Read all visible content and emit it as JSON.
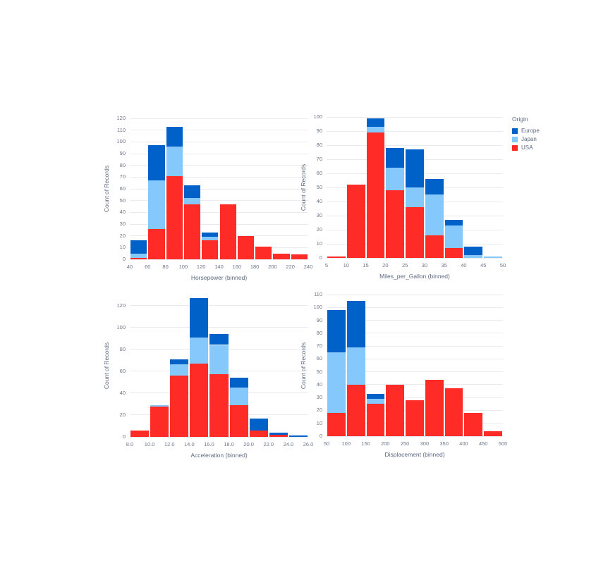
{
  "legend": {
    "title": "Origin",
    "entries": [
      {
        "label": "Europe",
        "color": "#0062c8"
      },
      {
        "label": "Japan",
        "color": "#85c8fb"
      },
      {
        "label": "USA",
        "color": "#ff2b26"
      }
    ]
  },
  "chart_data": [
    {
      "type": "bar",
      "id": "horsepower",
      "xlabel": "Horsepower (binned)",
      "ylabel": "Count of Records",
      "bin_start": 40,
      "bin_step": 20,
      "x_tick_labels": [
        "40",
        "60",
        "80",
        "100",
        "120",
        "140",
        "160",
        "180",
        "200",
        "220",
        "240"
      ],
      "ylim": [
        0,
        120
      ],
      "y_tick_values": [
        0,
        10,
        20,
        30,
        40,
        50,
        60,
        70,
        80,
        90,
        100,
        110,
        120
      ],
      "legend_position": "top-right",
      "grid": true,
      "series": [
        {
          "name": "USA",
          "color": "#ff2b26",
          "values": [
            1,
            26,
            71,
            47,
            16,
            47,
            20,
            11,
            5,
            4
          ]
        },
        {
          "name": "Japan",
          "color": "#85c8fb",
          "values": [
            4,
            41,
            25,
            5,
            3,
            0,
            0,
            0,
            0,
            0
          ]
        },
        {
          "name": "Europe",
          "color": "#0062c8",
          "values": [
            11,
            30,
            17,
            11,
            4,
            0,
            0,
            0,
            0,
            0
          ]
        }
      ]
    },
    {
      "type": "bar",
      "id": "miles-per-gallon",
      "xlabel": "Miles_per_Gallon (binned)",
      "ylabel": "Count of Records",
      "bin_start": 5,
      "bin_step": 5,
      "x_tick_labels": [
        "5",
        "10",
        "15",
        "20",
        "25",
        "30",
        "35",
        "40",
        "45",
        "50"
      ],
      "ylim": [
        0,
        100
      ],
      "y_tick_values": [
        0,
        10,
        20,
        30,
        40,
        50,
        60,
        70,
        80,
        90,
        100
      ],
      "grid": true,
      "series": [
        {
          "name": "USA",
          "color": "#ff2b26",
          "values": [
            1,
            52,
            89,
            48,
            36,
            16,
            7,
            0,
            0
          ]
        },
        {
          "name": "Japan",
          "color": "#85c8fb",
          "values": [
            0,
            0,
            4,
            16,
            14,
            29,
            16,
            2,
            1
          ]
        },
        {
          "name": "Europe",
          "color": "#0062c8",
          "values": [
            0,
            0,
            6,
            14,
            27,
            11,
            4,
            6,
            0
          ]
        }
      ]
    },
    {
      "type": "bar",
      "id": "acceleration",
      "xlabel": "Acceleration (binned)",
      "ylabel": "Count of Records",
      "bin_start": 8,
      "bin_step": 2,
      "x_tick_labels": [
        "8.0",
        "10.0",
        "12.0",
        "14.0",
        "16.0",
        "18.0",
        "20.0",
        "22.0",
        "24.0",
        "26.0"
      ],
      "ylim": [
        0,
        130
      ],
      "y_tick_values": [
        0,
        20,
        40,
        60,
        80,
        100,
        120
      ],
      "grid": true,
      "series": [
        {
          "name": "USA",
          "color": "#ff2b26",
          "values": [
            6,
            28,
            56,
            67,
            57,
            29,
            6,
            2,
            0
          ]
        },
        {
          "name": "Japan",
          "color": "#85c8fb",
          "values": [
            0,
            1,
            10,
            24,
            27,
            16,
            0,
            0,
            0
          ]
        },
        {
          "name": "Europe",
          "color": "#0062c8",
          "values": [
            0,
            0,
            5,
            36,
            10,
            9,
            11,
            2,
            1
          ]
        }
      ]
    },
    {
      "type": "bar",
      "id": "displacement",
      "xlabel": "Displacement (binned)",
      "ylabel": "Count of Records",
      "bin_start": 50,
      "bin_step": 50,
      "x_tick_labels": [
        "50",
        "100",
        "150",
        "200",
        "250",
        "300",
        "350",
        "400",
        "450",
        "500"
      ],
      "ylim": [
        0,
        110
      ],
      "y_tick_values": [
        0,
        10,
        20,
        30,
        40,
        50,
        60,
        70,
        80,
        90,
        100,
        110
      ],
      "grid": true,
      "series": [
        {
          "name": "USA",
          "color": "#ff2b26",
          "values": [
            18,
            40,
            25,
            40,
            28,
            44,
            37,
            18,
            4
          ]
        },
        {
          "name": "Japan",
          "color": "#85c8fb",
          "values": [
            47,
            29,
            4,
            0,
            0,
            0,
            0,
            0,
            0
          ]
        },
        {
          "name": "Europe",
          "color": "#0062c8",
          "values": [
            33,
            36,
            4,
            0,
            0,
            0,
            0,
            0,
            0
          ]
        }
      ]
    }
  ]
}
